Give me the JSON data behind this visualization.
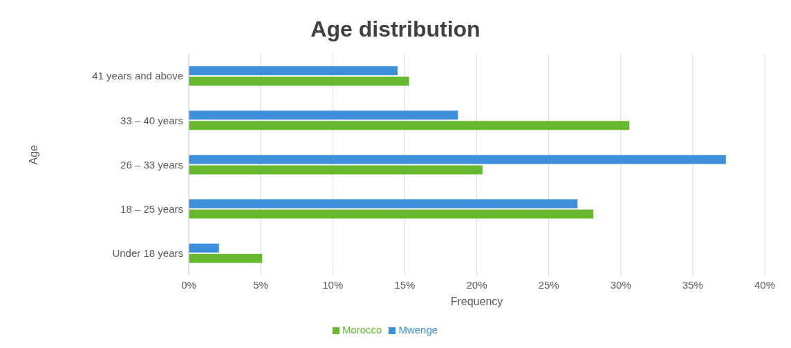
{
  "chart_data": {
    "type": "bar",
    "orientation": "horizontal",
    "title": "Age distribution",
    "xlabel": "Frequency",
    "ylabel": "Age",
    "categories": [
      "41 years and above",
      "33 – 40 years",
      "26 – 33 years",
      "18 – 25 years",
      "Under 18 years"
    ],
    "series": [
      {
        "name": "Mwenge",
        "color": "#3c8fd8",
        "values": [
          14.5,
          18.7,
          37.3,
          27.0,
          2.1
        ]
      },
      {
        "name": "Morocco",
        "color": "#66b82e",
        "values": [
          15.3,
          30.6,
          20.4,
          28.1,
          5.1
        ]
      }
    ],
    "xlim": [
      0,
      40
    ],
    "xticks": [
      {
        "value": 0,
        "label": "0%"
      },
      {
        "value": 5,
        "label": "5%"
      },
      {
        "value": 10,
        "label": "10%"
      },
      {
        "value": 15,
        "label": "15%"
      },
      {
        "value": 20,
        "label": "20%"
      },
      {
        "value": 25,
        "label": "25%"
      },
      {
        "value": 30,
        "label": "30%"
      },
      {
        "value": 35,
        "label": "35%"
      },
      {
        "value": 40,
        "label": "40%"
      }
    ],
    "grid": "x",
    "legend": "bottom"
  }
}
